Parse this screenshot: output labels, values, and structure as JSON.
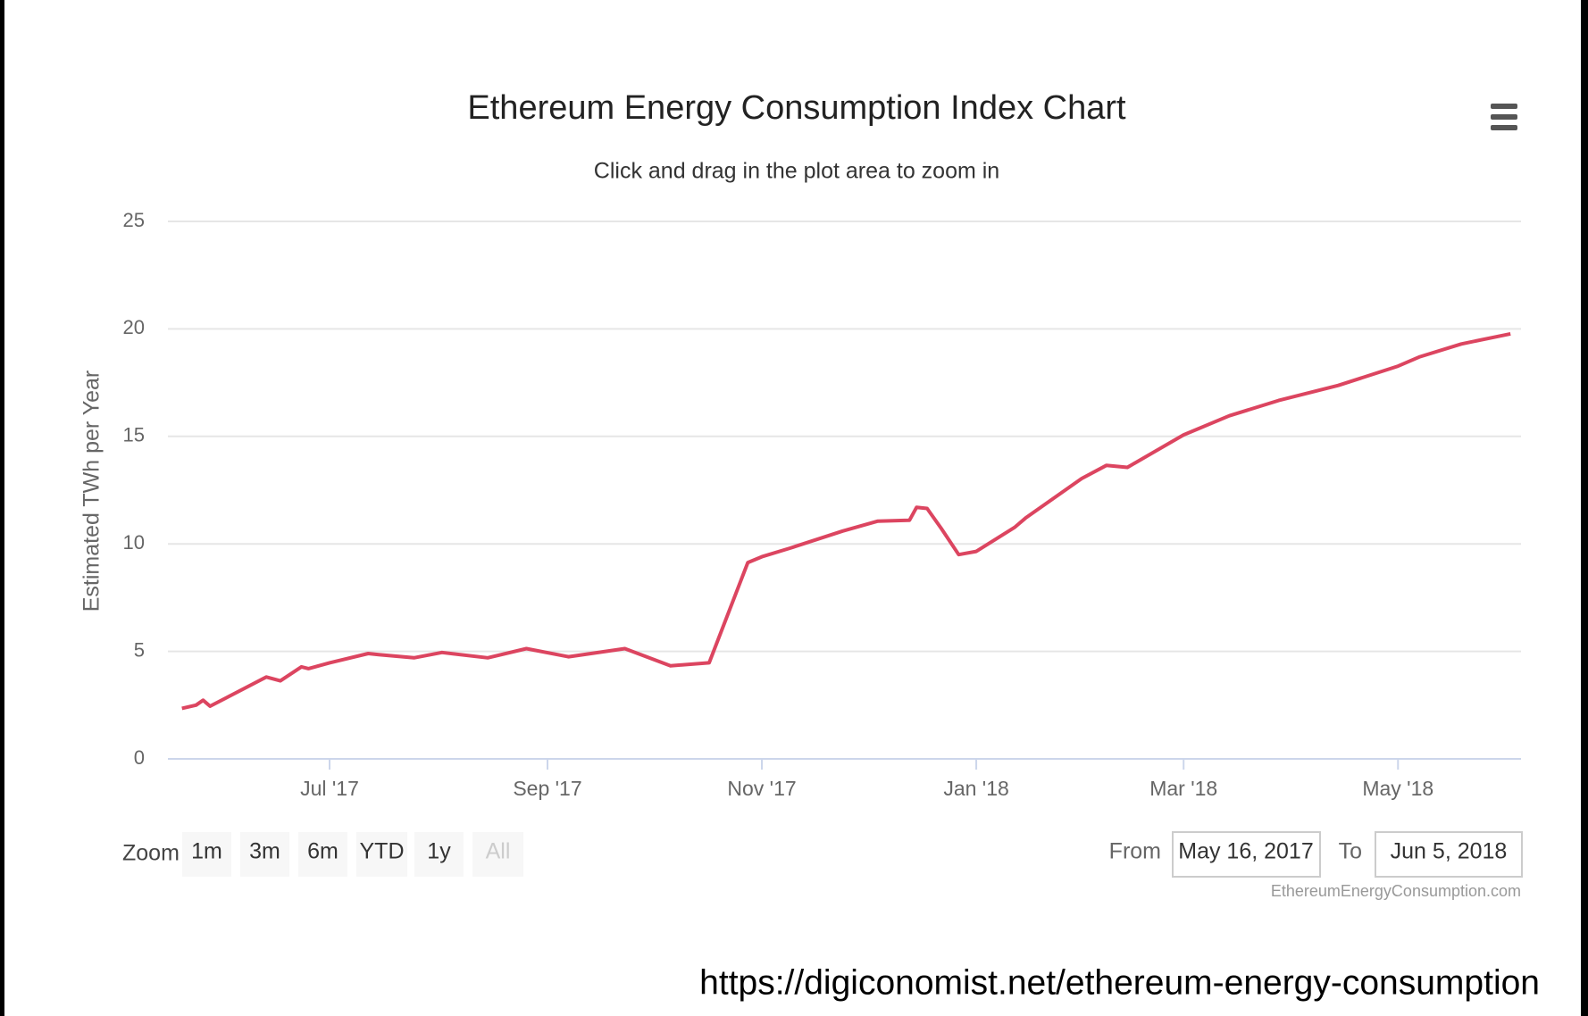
{
  "chart_data": {
    "type": "line",
    "title": "Ethereum Energy Consumption Index Chart",
    "subtitle": "Click and drag in the plot area to zoom in",
    "y_label": "Estimated TWh per Year",
    "x": [
      "2017-05-20",
      "2017-05-24",
      "2017-05-26",
      "2017-05-28",
      "2017-06-13",
      "2017-06-17",
      "2017-06-23",
      "2017-06-25",
      "2017-07-01",
      "2017-07-12",
      "2017-07-15",
      "2017-07-25",
      "2017-08-02",
      "2017-08-15",
      "2017-08-26",
      "2017-09-07",
      "2017-09-23",
      "2017-10-06",
      "2017-10-17",
      "2017-10-28",
      "2017-11-01",
      "2017-11-09",
      "2017-11-24",
      "2017-12-04",
      "2017-12-13",
      "2017-12-15",
      "2017-12-18",
      "2017-12-22",
      "2017-12-27",
      "2018-01-01",
      "2018-01-12",
      "2018-01-15",
      "2018-01-31",
      "2018-02-07",
      "2018-02-13",
      "2018-03-01",
      "2018-03-14",
      "2018-03-28",
      "2018-04-14",
      "2018-05-01",
      "2018-05-07",
      "2018-05-19",
      "2018-06-02"
    ],
    "series": [
      {
        "color": "#dc4560",
        "values": [
          2.35,
          2.5,
          2.73,
          2.45,
          3.81,
          3.63,
          4.28,
          4.2,
          4.47,
          4.9,
          4.85,
          4.7,
          4.95,
          4.7,
          5.13,
          4.75,
          5.13,
          4.33,
          4.47,
          9.13,
          9.4,
          9.8,
          10.6,
          11.06,
          11.1,
          11.7,
          11.65,
          10.73,
          9.5,
          9.65,
          10.78,
          11.2,
          13.04,
          13.65,
          13.56,
          15.07,
          15.96,
          16.67,
          17.37,
          18.27,
          18.69,
          19.3,
          19.77
        ]
      }
    ],
    "xlim": [
      "2017-05-16",
      "2018-06-05"
    ],
    "xticks": [
      {
        "value": "2017-07-01",
        "label": "Jul '17"
      },
      {
        "value": "2017-09-01",
        "label": "Sep '17"
      },
      {
        "value": "2017-11-01",
        "label": "Nov '17"
      },
      {
        "value": "2018-01-01",
        "label": "Jan '18"
      },
      {
        "value": "2018-03-01",
        "label": "Mar '18"
      },
      {
        "value": "2018-05-01",
        "label": "May '18"
      }
    ],
    "ylim": [
      0,
      25
    ],
    "yticks": [
      0,
      5,
      10,
      15,
      20,
      25
    ],
    "grid": true,
    "range_selector": {
      "label": "Zoom",
      "buttons": [
        "1m",
        "3m",
        "6m",
        "YTD",
        "1y",
        "All"
      ],
      "disabled": "All"
    },
    "inputs": {
      "from_label": "From",
      "from": "May 16, 2017",
      "to_label": "To",
      "to": "Jun 5, 2018"
    },
    "credits": "EthereumEnergyConsumption.com",
    "source": "https://digiconomist.net/ethereum-energy-consumption"
  }
}
